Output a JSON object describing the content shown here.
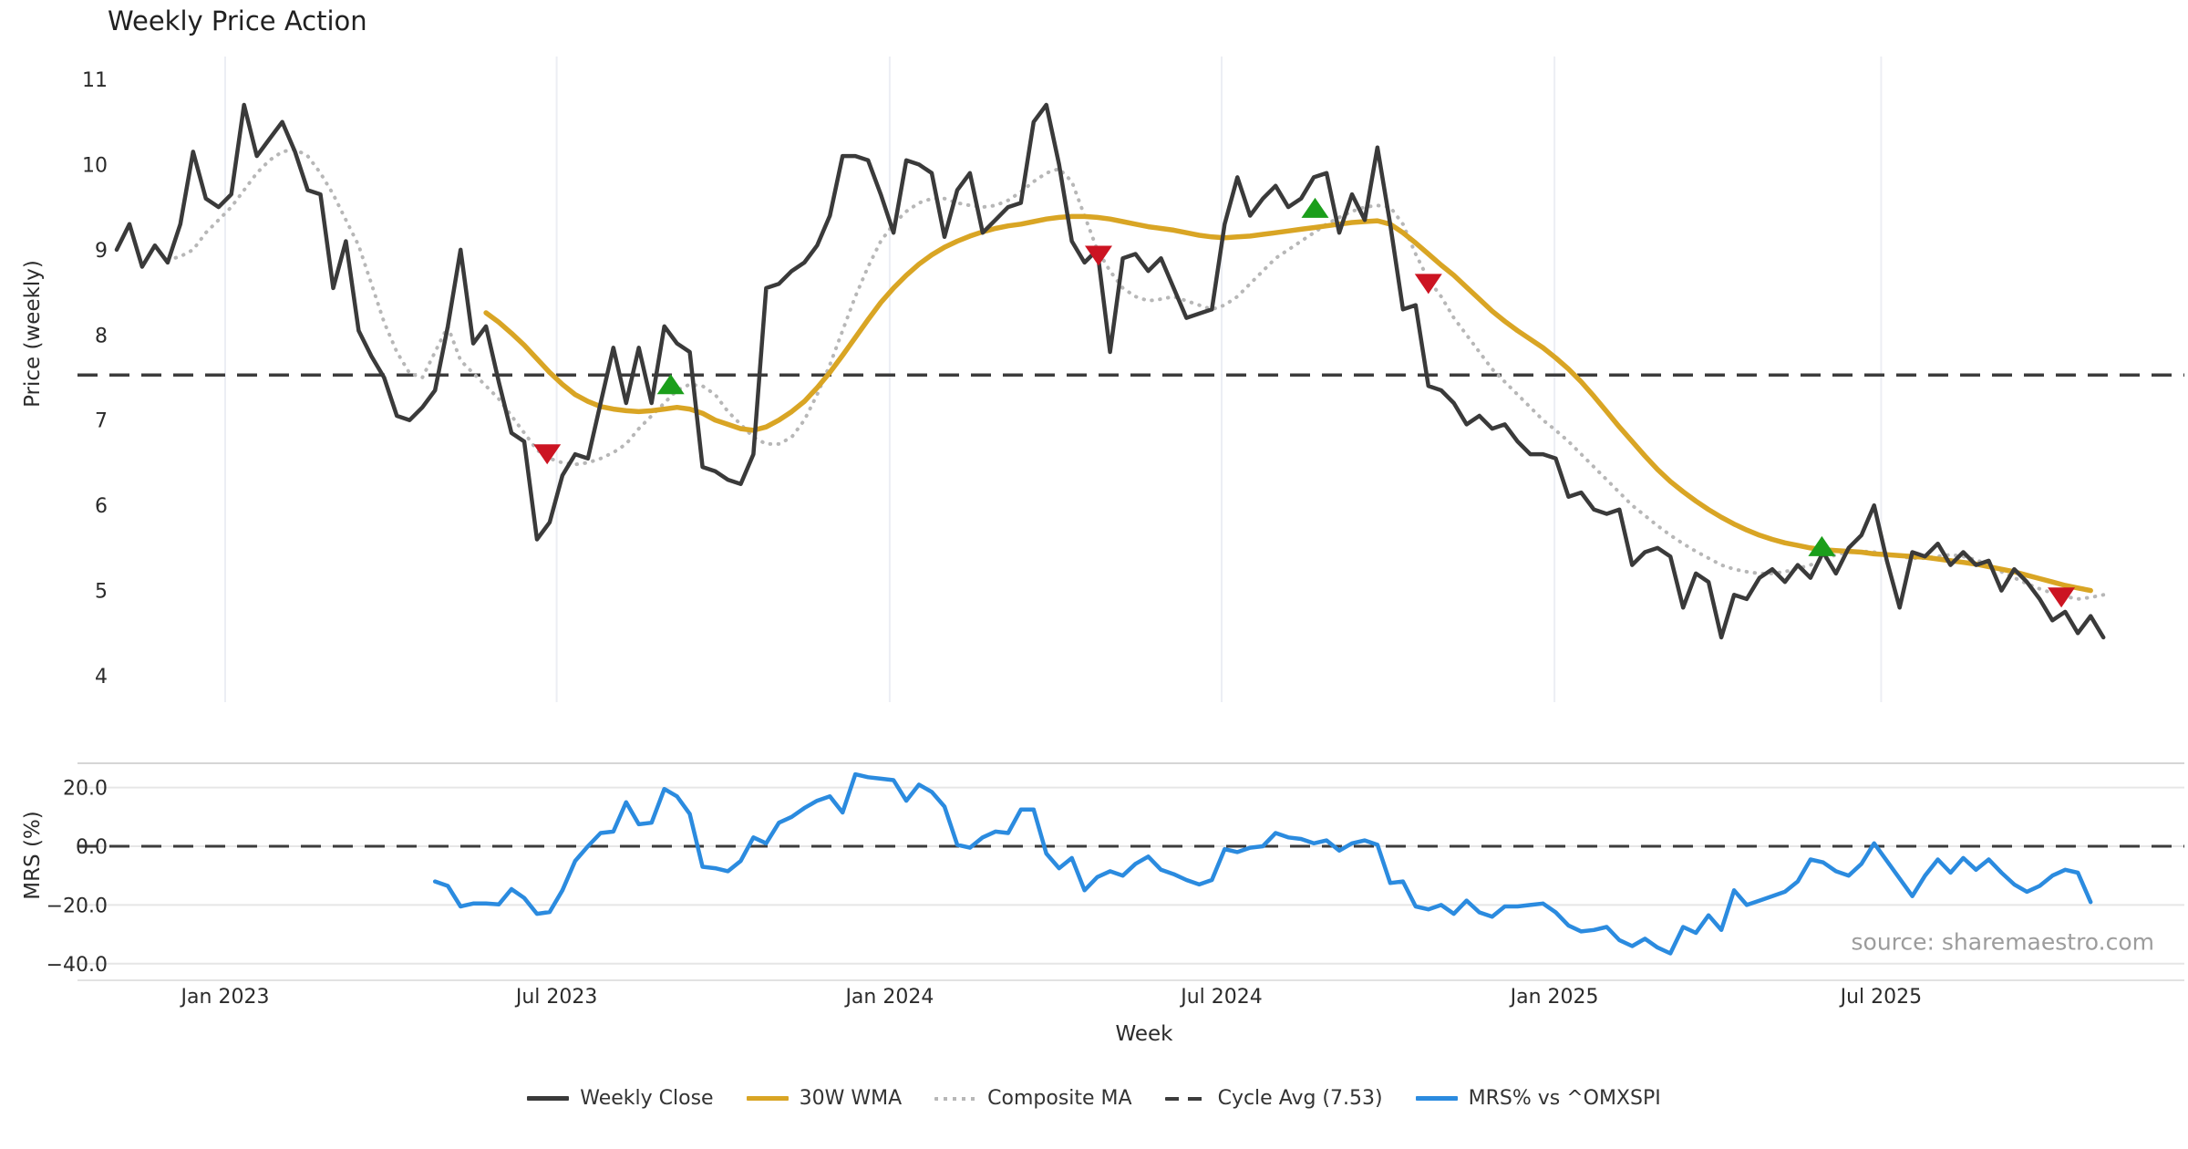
{
  "title": "Weekly Price Action",
  "source_text": "source: sharemaestro.com",
  "legend": [
    {
      "label": "Weekly Close",
      "style": "solid-dark"
    },
    {
      "label": "30W WMA",
      "style": "solid-gold"
    },
    {
      "label": "Composite MA",
      "style": "dotted-gray"
    },
    {
      "label": "Cycle Avg (7.53)",
      "style": "dashed-dark"
    },
    {
      "label": "MRS% vs ^OMXSPI",
      "style": "solid-blue"
    }
  ],
  "colors": {
    "weekly_close": "#3a3a3a",
    "wma_30w": "#d9a524",
    "composite_ma": "#b7b7b7",
    "cycle_avg": "#3c3c3c",
    "mrs": "#2b8bdf",
    "buy_marker": "#1b9e1b",
    "sell_marker": "#cc1422",
    "grid_vertical": "#eceef4",
    "grid_horizontal": "#e6e6e6",
    "tick_text": "#2b2b2b"
  },
  "chart_data": {
    "type": "line",
    "title": "Weekly Price Action",
    "xlabel": "Week",
    "x_ticks": [
      {
        "label": "Jan 2023",
        "week": 8.52
      },
      {
        "label": "Jul 2023",
        "week": 34.55
      },
      {
        "label": "Jan 2024",
        "week": 60.7
      },
      {
        "label": "Jul 2024",
        "week": 86.76
      },
      {
        "label": "Jan 2025",
        "week": 112.9
      },
      {
        "label": "Jul 2025",
        "week": 138.55
      }
    ],
    "panels": [
      {
        "name": "price",
        "ylabel": "Price (weekly)",
        "ylim": [
          4,
          11
        ],
        "yticks": [
          4,
          5,
          6,
          7,
          8,
          9,
          10,
          11
        ],
        "cycle_avg": 7.53,
        "series": [
          {
            "name": "Weekly Close",
            "color": "#3a3a3a",
            "style": "solid",
            "width": 4.5,
            "start_week": 0,
            "values": [
              9.0,
              9.3,
              8.8,
              9.05,
              8.85,
              9.3,
              10.15,
              9.6,
              9.5,
              9.65,
              10.7,
              10.1,
              10.3,
              10.5,
              10.15,
              9.7,
              9.65,
              8.55,
              9.1,
              8.05,
              7.75,
              7.5,
              7.05,
              7.0,
              7.15,
              7.35,
              8.1,
              9.0,
              7.9,
              8.1,
              7.45,
              6.85,
              6.75,
              5.6,
              5.8,
              6.35,
              6.6,
              6.55,
              7.2,
              7.85,
              7.2,
              7.85,
              7.2,
              8.1,
              7.9,
              7.8,
              6.45,
              6.4,
              6.3,
              6.25,
              6.6,
              8.55,
              8.6,
              8.75,
              8.85,
              9.05,
              9.4,
              10.1,
              10.1,
              10.05,
              9.65,
              9.2,
              10.05,
              10.0,
              9.9,
              9.15,
              9.7,
              9.9,
              9.2,
              9.35,
              9.5,
              9.55,
              10.5,
              10.7,
              10.0,
              9.1,
              8.85,
              9.0,
              7.8,
              8.9,
              8.95,
              8.75,
              8.9,
              8.55,
              8.2,
              8.25,
              8.3,
              9.3,
              9.85,
              9.4,
              9.6,
              9.75,
              9.5,
              9.6,
              9.85,
              9.9,
              9.2,
              9.65,
              9.35,
              10.2,
              9.3,
              8.3,
              8.35,
              7.4,
              7.35,
              7.2,
              6.95,
              7.05,
              6.9,
              6.95,
              6.75,
              6.6,
              6.6,
              6.55,
              6.1,
              6.15,
              5.95,
              5.9,
              5.95,
              5.3,
              5.45,
              5.5,
              5.4,
              4.8,
              5.2,
              5.1,
              4.45,
              4.95,
              4.9,
              5.15,
              5.25,
              5.1,
              5.3,
              5.15,
              5.45,
              5.2,
              5.5,
              5.65,
              6.0,
              5.35,
              4.8,
              5.45,
              5.4,
              5.55,
              5.3,
              5.45,
              5.3,
              5.35,
              5.0,
              5.25,
              5.1,
              4.9,
              4.65,
              4.75,
              4.5,
              4.7,
              4.45
            ]
          },
          {
            "name": "30W WMA",
            "color": "#d9a524",
            "style": "solid",
            "width": 5.5,
            "start_week": 29,
            "values": [
              8.26,
              8.15,
              8.02,
              7.88,
              7.72,
              7.56,
              7.42,
              7.3,
              7.22,
              7.16,
              7.13,
              7.11,
              7.1,
              7.11,
              7.13,
              7.15,
              7.13,
              7.08,
              7.0,
              6.95,
              6.9,
              6.88,
              6.92,
              7.0,
              7.1,
              7.22,
              7.38,
              7.56,
              7.76,
              7.97,
              8.18,
              8.38,
              8.55,
              8.7,
              8.83,
              8.94,
              9.03,
              9.1,
              9.16,
              9.21,
              9.25,
              9.28,
              9.3,
              9.33,
              9.36,
              9.38,
              9.39,
              9.39,
              9.38,
              9.36,
              9.33,
              9.3,
              9.27,
              9.25,
              9.23,
              9.2,
              9.17,
              9.15,
              9.14,
              9.15,
              9.16,
              9.18,
              9.2,
              9.22,
              9.24,
              9.26,
              9.28,
              9.3,
              9.32,
              9.33,
              9.34,
              9.3,
              9.2,
              9.08,
              8.95,
              8.82,
              8.7,
              8.56,
              8.42,
              8.28,
              8.16,
              8.05,
              7.95,
              7.85,
              7.73,
              7.6,
              7.45,
              7.28,
              7.1,
              6.92,
              6.75,
              6.58,
              6.42,
              6.28,
              6.16,
              6.05,
              5.95,
              5.86,
              5.78,
              5.71,
              5.65,
              5.6,
              5.56,
              5.53,
              5.5,
              5.48,
              5.47,
              5.46,
              5.45,
              5.43,
              5.42,
              5.41,
              5.4,
              5.39,
              5.37,
              5.35,
              5.33,
              5.31,
              5.28,
              5.25,
              5.22,
              5.18,
              5.14,
              5.1,
              5.06,
              5.03,
              5.0
            ]
          },
          {
            "name": "Composite MA",
            "color": "#b7b7b7",
            "style": "dotted",
            "width": 4,
            "start_week": 4,
            "values": [
              8.88,
              8.92,
              9.0,
              9.2,
              9.35,
              9.5,
              9.7,
              9.9,
              10.05,
              10.15,
              10.18,
              10.1,
              9.9,
              9.65,
              9.35,
              9.05,
              8.6,
              8.15,
              7.8,
              7.55,
              7.5,
              7.8,
              8.1,
              7.7,
              7.55,
              7.4,
              7.25,
              7.05,
              6.85,
              6.65,
              6.55,
              6.5,
              6.48,
              6.5,
              6.55,
              6.62,
              6.72,
              6.9,
              7.05,
              7.2,
              7.35,
              7.42,
              7.4,
              7.3,
              7.1,
              6.95,
              6.8,
              6.72,
              6.72,
              6.8,
              7.0,
              7.3,
              7.65,
              8.05,
              8.45,
              8.8,
              9.1,
              9.3,
              9.45,
              9.55,
              9.6,
              9.6,
              9.55,
              9.52,
              9.5,
              9.52,
              9.58,
              9.68,
              9.8,
              9.9,
              9.95,
              9.8,
              9.4,
              9.0,
              8.75,
              8.55,
              8.45,
              8.4,
              8.42,
              8.45,
              8.4,
              8.35,
              8.3,
              8.35,
              8.45,
              8.6,
              8.75,
              8.9,
              9.0,
              9.1,
              9.2,
              9.3,
              9.38,
              9.45,
              9.5,
              9.52,
              9.5,
              9.3,
              8.95,
              8.65,
              8.45,
              8.2,
              8.0,
              7.8,
              7.6,
              7.45,
              7.3,
              7.15,
              7.0,
              6.88,
              6.75,
              6.6,
              6.45,
              6.3,
              6.15,
              6.0,
              5.88,
              5.76,
              5.65,
              5.55,
              5.46,
              5.38,
              5.3,
              5.25,
              5.22,
              5.2,
              5.2,
              5.22,
              5.26,
              5.3,
              5.36,
              5.42,
              5.45,
              5.46,
              5.45,
              5.43,
              5.4,
              5.38,
              5.38,
              5.4,
              5.42,
              5.4,
              5.36,
              5.3,
              5.22,
              5.15,
              5.08,
              5.02,
              4.97,
              4.93,
              4.9,
              4.92,
              4.95
            ]
          }
        ],
        "markers": {
          "buy": {
            "color": "#1b9e1b",
            "shape": "triangle-up",
            "points": [
              [
                43.5,
                7.4
              ],
              [
                94.1,
                9.47
              ],
              [
                133.9,
                5.5
              ]
            ]
          },
          "sell": {
            "color": "#cc1422",
            "shape": "triangle-down",
            "points": [
              [
                33.8,
                6.62
              ],
              [
                77.1,
                8.95
              ],
              [
                103.0,
                8.62
              ],
              [
                152.7,
                4.94
              ]
            ]
          }
        }
      },
      {
        "name": "mrs",
        "ylabel": "MRS (%)",
        "ylim": [
          -42,
          28
        ],
        "yticks": [
          {
            "v": 20,
            "label": "20.0"
          },
          {
            "v": 0,
            "label": "0.0"
          },
          {
            "v": -20,
            "label": "−20.0"
          },
          {
            "v": -40,
            "label": "−40.0"
          }
        ],
        "zero_line_dashed": true,
        "series": [
          {
            "name": "MRS% vs ^OMXSPI",
            "color": "#2b8bdf",
            "style": "solid",
            "width": 4.5,
            "start_week": 25,
            "values": [
              -12,
              -13.5,
              -20.5,
              -19.5,
              -19.5,
              -19.8,
              -14.6,
              -17.6,
              -23,
              -22.4,
              -15,
              -5,
              0,
              4.5,
              5,
              15,
              7.5,
              8,
              19.5,
              17,
              11,
              -7,
              -7.5,
              -8.5,
              -5,
              3,
              1,
              8,
              10,
              13,
              15.5,
              17,
              11.5,
              24.5,
              23.5,
              23,
              22.5,
              15.5,
              21,
              18.5,
              13.5,
              0.5,
              -0.5,
              3,
              5,
              4.5,
              12.5,
              12.5,
              -2.5,
              -7.5,
              -4,
              -15,
              -10.5,
              -8.5,
              -10,
              -6,
              -3.5,
              -8,
              -9.5,
              -11.5,
              -13,
              -11.5,
              -1,
              -2,
              -0.5,
              0,
              4.5,
              3,
              2.5,
              1,
              2,
              -1.5,
              1,
              2,
              0.5,
              -12.5,
              -12,
              -20.5,
              -21.5,
              -20,
              -23,
              -18.5,
              -22.5,
              -24,
              -20.5,
              -20.5,
              -20,
              -19.5,
              -22.5,
              -27,
              -29,
              -28.5,
              -27.5,
              -32,
              -34,
              -31.5,
              -34.5,
              -36.5,
              -27.5,
              -29.5,
              -23.5,
              -28.5,
              -15,
              -20,
              -18.5,
              -17,
              -15.5,
              -12,
              -4.5,
              -5.5,
              -8.5,
              -10,
              -6,
              1,
              -5,
              -11,
              -17,
              -10,
              -4.5,
              -9,
              -4,
              -8,
              -4.5,
              -9,
              -13,
              -15.5,
              -13.5,
              -10,
              -8,
              -9,
              -19
            ]
          }
        ]
      }
    ]
  }
}
